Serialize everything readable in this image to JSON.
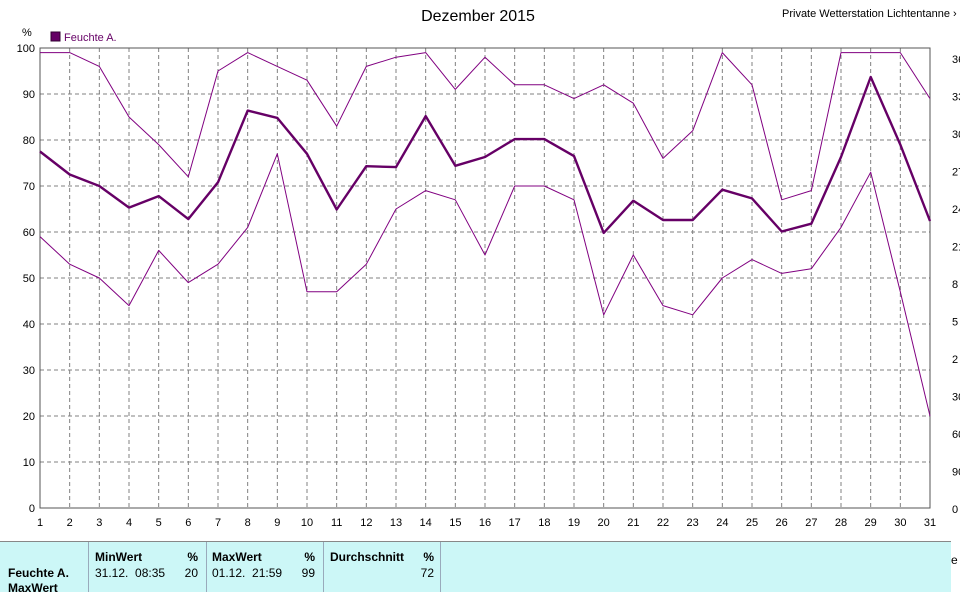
{
  "header": {
    "title": "Dezember 2015",
    "station": "Private Wetterstation Lichtentanne › L"
  },
  "legend": {
    "label": "Feuchte A.",
    "color": "#660066"
  },
  "chart_data": {
    "type": "line",
    "title": "Dezember 2015",
    "ylabel": "%",
    "ylim": [
      0,
      100
    ],
    "yticks": [
      0,
      10,
      20,
      30,
      40,
      50,
      60,
      70,
      80,
      90,
      100
    ],
    "x": [
      1,
      2,
      3,
      4,
      5,
      6,
      7,
      8,
      9,
      10,
      11,
      12,
      13,
      14,
      15,
      16,
      17,
      18,
      19,
      20,
      21,
      22,
      23,
      24,
      25,
      26,
      27,
      28,
      29,
      30,
      31
    ],
    "grid": true,
    "legend_position": "top-left",
    "series": [
      {
        "name": "Feuchte A.",
        "role": "max",
        "color": "#800080",
        "width": 1,
        "values": [
          99,
          99,
          96,
          85,
          79,
          72,
          95,
          99,
          96,
          93,
          83,
          96,
          98,
          99,
          91,
          98,
          92,
          92,
          89,
          92,
          88,
          76,
          82,
          99,
          92,
          67,
          69,
          99,
          99,
          99,
          89
        ]
      },
      {
        "name": "Feuchte A.",
        "role": "avg",
        "color": "#660066",
        "width": 2.4,
        "values": [
          77.5,
          72.5,
          70,
          65.3,
          67.8,
          62.8,
          70.8,
          86.4,
          84.8,
          77,
          64.9,
          74.3,
          74.1,
          85.2,
          74.4,
          76.3,
          80.2,
          80.2,
          76.5,
          59.8,
          66.8,
          62.6,
          62.6,
          69.2,
          67.3,
          60.1,
          61.8,
          76.3,
          93.7,
          79,
          62.4
        ]
      },
      {
        "name": "Feuchte A.",
        "role": "min",
        "color": "#800080",
        "width": 1,
        "values": [
          59,
          53,
          50,
          44,
          56,
          49,
          53,
          61,
          77,
          47,
          47,
          53,
          65,
          69,
          67,
          55,
          70,
          70,
          67,
          42,
          55,
          44,
          42,
          50,
          54,
          51,
          52,
          61,
          73,
          47,
          20
        ]
      }
    ],
    "right_axis_partial_labels": [
      "36",
      "33",
      "30",
      "27",
      "24",
      "21",
      "8",
      "5",
      "2",
      "30",
      "60",
      "90",
      "0"
    ]
  },
  "stats": {
    "row_label": "Feuchte A.",
    "row_label2": "MaxWert",
    "min": {
      "header": "MinWert",
      "unit": "%",
      "time": "31.12.  08:35",
      "value": "20"
    },
    "max": {
      "header": "MaxWert",
      "unit": "%",
      "time": "01.12.  21:59",
      "value": "99"
    },
    "avg": {
      "header": "Durchschnitt",
      "unit": "%",
      "value": "72"
    },
    "right_cut": "e"
  }
}
